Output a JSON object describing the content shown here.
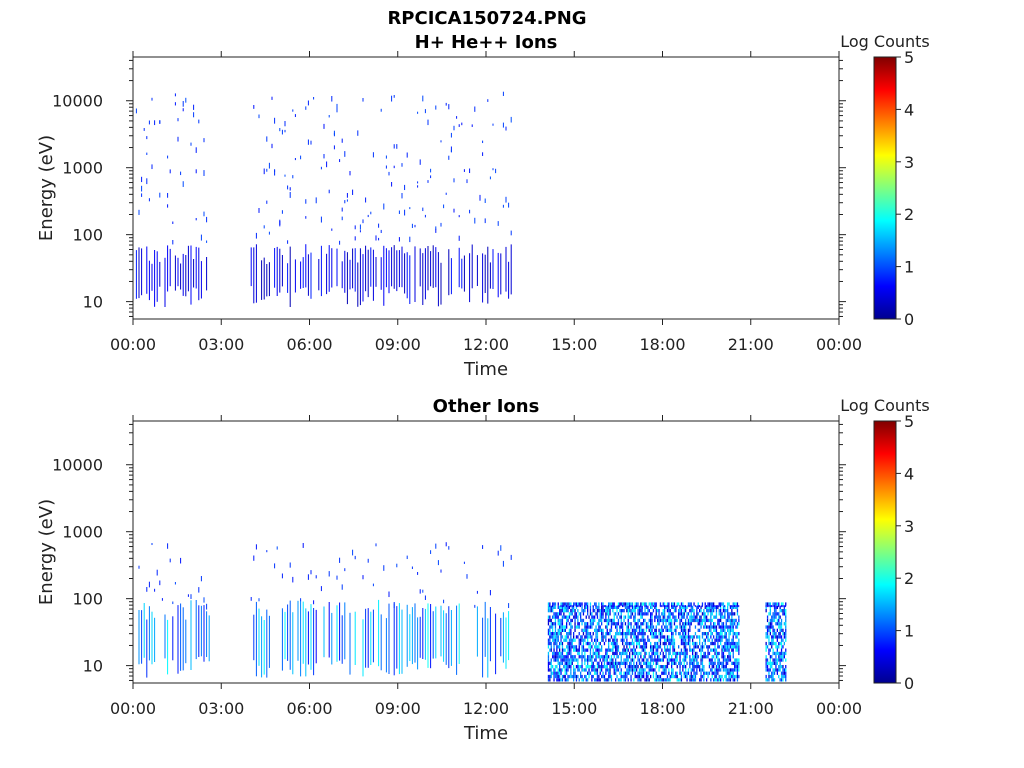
{
  "figure_title": "RPCICA150724.PNG",
  "colors": {
    "axis": "#222222",
    "background": "#ffffff"
  },
  "chart_data": [
    {
      "type": "heatmap",
      "title": "H+ He++ Ions",
      "xlabel": "Time",
      "ylabel": "Energy (eV)",
      "y_scale": "log",
      "ylim": [
        5.5,
        45000
      ],
      "y_ticks": [
        10,
        100,
        1000,
        10000
      ],
      "y_tick_labels": [
        "10",
        "100",
        "1000",
        "10000"
      ],
      "xlim_hours": [
        0,
        24
      ],
      "x_ticks_hours": [
        0,
        3,
        6,
        9,
        12,
        15,
        18,
        21,
        24
      ],
      "x_tick_labels": [
        "00:00",
        "03:00",
        "06:00",
        "09:00",
        "12:00",
        "15:00",
        "18:00",
        "21:00",
        "00:00"
      ],
      "colorbar": {
        "label": "Log Counts",
        "range": [
          0,
          5
        ],
        "ticks": [
          0,
          1,
          2,
          3,
          4,
          5
        ],
        "colormap": "jet"
      },
      "data_segments_hours": [
        [
          0.1,
          2.5
        ],
        [
          4.0,
          12.9
        ]
      ],
      "low_energy_band_eV": [
        15,
        60
      ],
      "typical_level": 0.6
    },
    {
      "type": "heatmap",
      "title": "Other Ions",
      "xlabel": "Time",
      "ylabel": "Energy (eV)",
      "y_scale": "log",
      "ylim": [
        5.5,
        45000
      ],
      "y_ticks": [
        10,
        100,
        1000,
        10000
      ],
      "y_tick_labels": [
        "10",
        "100",
        "1000",
        "10000"
      ],
      "xlim_hours": [
        0,
        24
      ],
      "x_ticks_hours": [
        0,
        3,
        6,
        9,
        12,
        15,
        18,
        21,
        24
      ],
      "x_tick_labels": [
        "00:00",
        "03:00",
        "06:00",
        "09:00",
        "12:00",
        "15:00",
        "18:00",
        "21:00",
        "00:00"
      ],
      "colorbar": {
        "label": "Log Counts",
        "range": [
          0,
          5
        ],
        "ticks": [
          0,
          1,
          2,
          3,
          4,
          5
        ],
        "colormap": "jet"
      },
      "data_segments_hours": [
        [
          0.1,
          2.6
        ],
        [
          4.0,
          12.9
        ],
        [
          14.1,
          20.6
        ],
        [
          21.5,
          22.2
        ]
      ],
      "low_energy_band_eV": [
        12,
        80
      ],
      "typical_level": 1.5
    }
  ]
}
